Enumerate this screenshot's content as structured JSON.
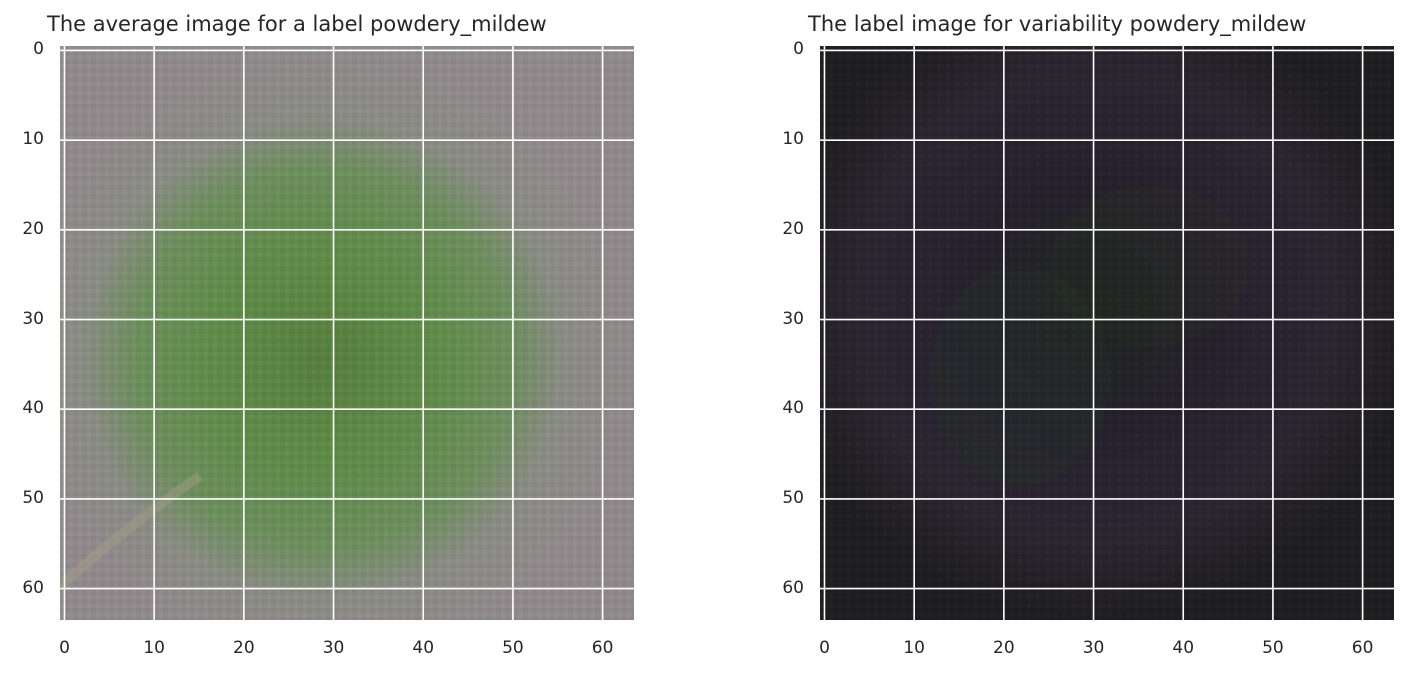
{
  "panels": [
    {
      "id": "average",
      "title": "The average image for a label powdery_mildew",
      "image": {
        "depicts": "blurred green leaf on grey background",
        "colors": {
          "background": "#918a8c",
          "center": "#5b8a45",
          "edge": "#8a8f84"
        }
      },
      "axes": {
        "xlim": [
          -0.5,
          63.5
        ],
        "ylim": [
          63.5,
          -0.5
        ],
        "xticks": [
          "0",
          "10",
          "20",
          "30",
          "40",
          "50",
          "60"
        ],
        "yticks": [
          "0",
          "10",
          "20",
          "30",
          "40",
          "50",
          "60"
        ],
        "grid": true
      }
    },
    {
      "id": "variability",
      "title": "The label image for variability powdery_mildew",
      "image": {
        "depicts": "dark variability map with faint purple and green tones",
        "colors": {
          "background": "#1e1d1f",
          "tint_purple": "#2a2433",
          "tint_green": "#27302a"
        }
      },
      "axes": {
        "xlim": [
          -0.5,
          63.5
        ],
        "ylim": [
          63.5,
          -0.5
        ],
        "xticks": [
          "0",
          "10",
          "20",
          "30",
          "40",
          "50",
          "60"
        ],
        "yticks": [
          "0",
          "10",
          "20",
          "30",
          "40",
          "50",
          "60"
        ],
        "grid": true
      }
    }
  ]
}
